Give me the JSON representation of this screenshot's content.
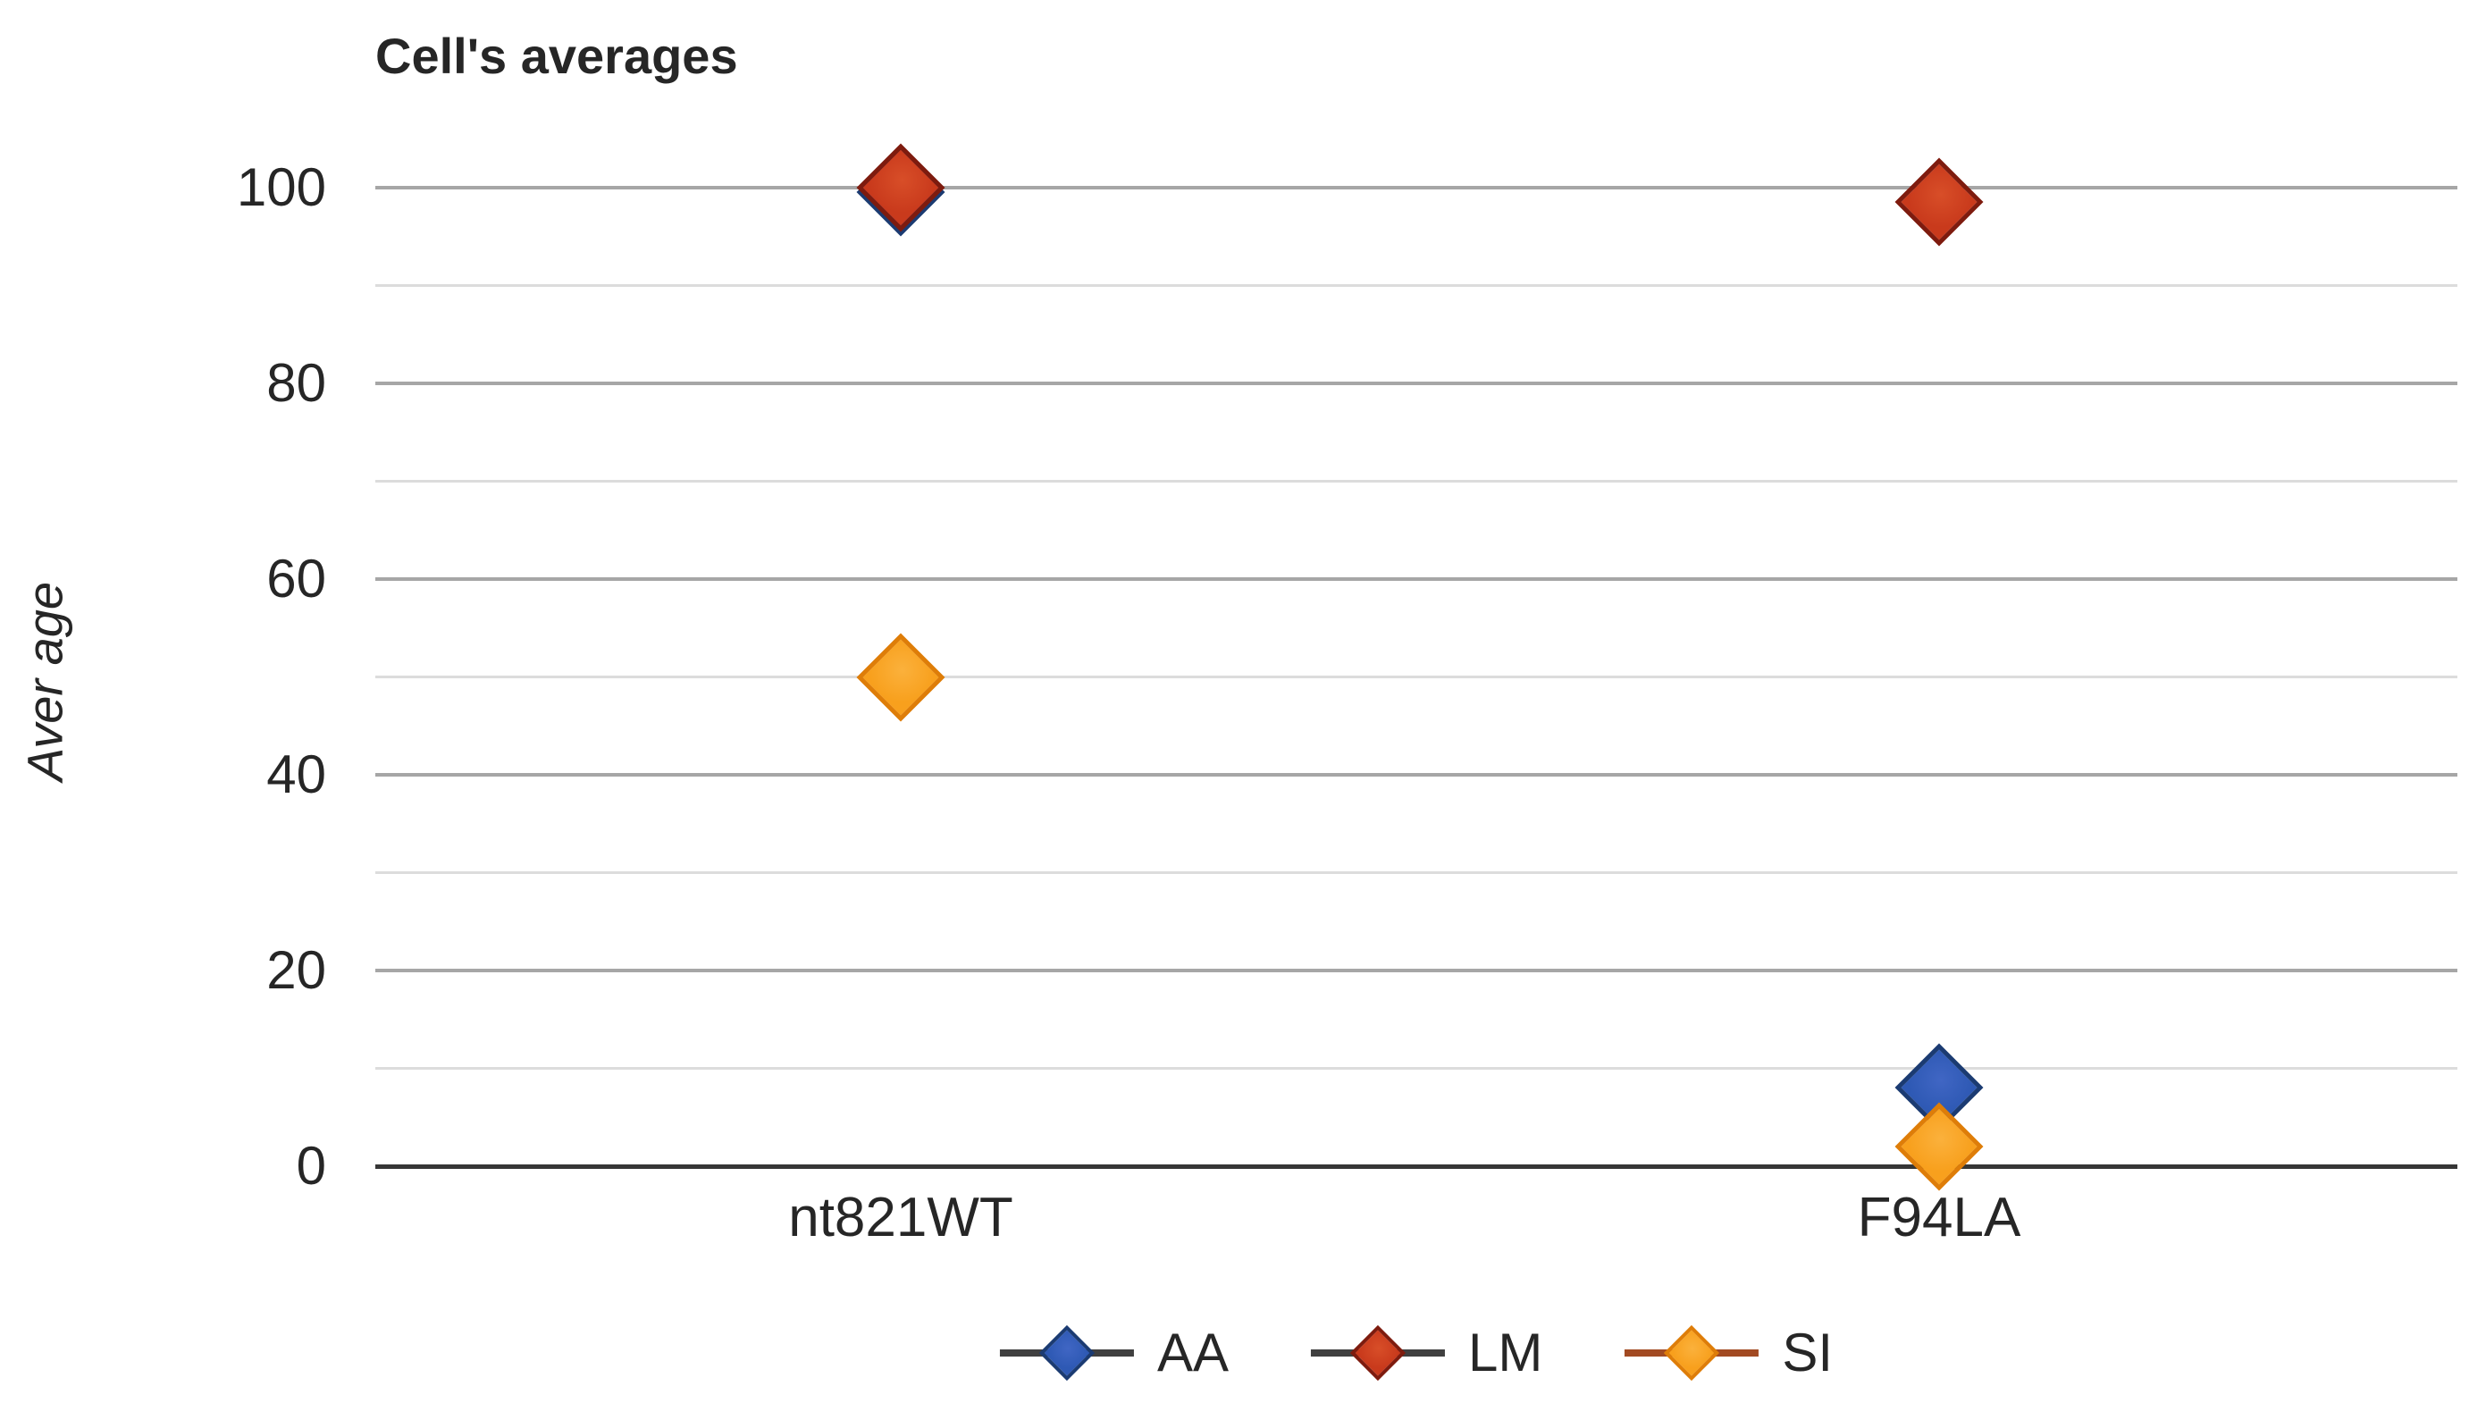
{
  "title": "Cell's averages",
  "y_axis": {
    "label": "Aver age",
    "ticks": [
      0,
      20,
      40,
      60,
      80,
      100
    ]
  },
  "x_axis": {
    "categories": [
      "nt821WT",
      "F94LA"
    ]
  },
  "legend": {
    "position": "bottom",
    "items": [
      "AA",
      "LM",
      "SI"
    ]
  },
  "palette": {
    "text": "#262626",
    "minor_gridline": "#dcdcdc",
    "major_gridline": "#a6a6a6",
    "axis_line": "#363636"
  },
  "chart_data": {
    "type": "scatter",
    "subtype": "line-with-markers-no-line",
    "title": "Cell's averages",
    "xlabel": "",
    "ylabel": "Aver age",
    "ylim": [
      0,
      100
    ],
    "categories": [
      "nt821WT",
      "F94LA"
    ],
    "series": [
      {
        "name": "AA",
        "values": [
          99.5,
          8
        ],
        "marker": "diamond",
        "fill": "#2e59b4",
        "fill_light": "#4066c4",
        "border": "#1b3b72",
        "legend_line_color": "#404040"
      },
      {
        "name": "LM",
        "values": [
          100,
          98.5
        ],
        "marker": "diamond",
        "fill": "#c93a1c",
        "fill_light": "#d84e28",
        "border": "#7e1b0e",
        "legend_line_color": "#404040"
      },
      {
        "name": "SI",
        "values": [
          50,
          2
        ],
        "marker": "diamond",
        "fill": "#f8a01d",
        "fill_light": "#fbb13c",
        "border": "#de7d08",
        "legend_line_color": "#a24a22"
      }
    ],
    "gridlines": {
      "minor_step": 10,
      "major_step": 20,
      "grid_on": true
    },
    "legend_position": "bottom"
  }
}
